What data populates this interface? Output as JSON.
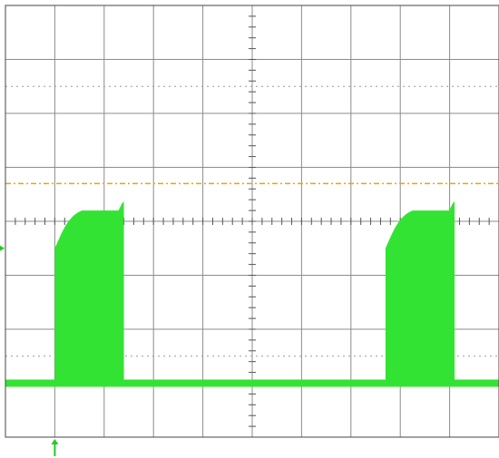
{
  "chart_data": {
    "type": "oscilloscope",
    "x_divisions": 10,
    "y_divisions": 8,
    "trigger_level_div": 4.7,
    "trigger_position_div": 1.0,
    "ground_level_div": 1.0,
    "pulses": [
      {
        "start_div": 1.0,
        "end_div": 2.4,
        "rise_level_div": 3.5,
        "plateau_level_div": 4.2
      },
      {
        "start_div": 7.7,
        "end_div": 9.1,
        "rise_level_div": 3.5,
        "plateau_level_div": 4.2
      }
    ],
    "colors": {
      "trace": "#33e333",
      "trigger_level": "#f2a400",
      "markers": "#22cc22",
      "grid": "#8c8c8c"
    },
    "grid": true
  }
}
